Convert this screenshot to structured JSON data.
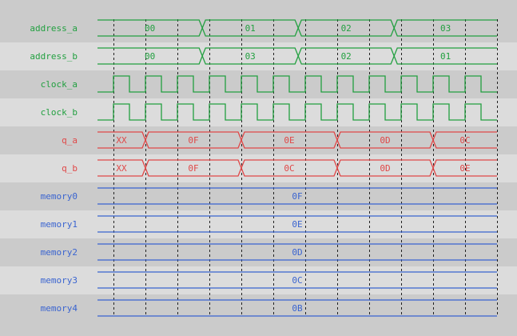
{
  "colors": {
    "bg_dark": "#cbcbcb",
    "bg_light": "#dcdcdc",
    "input": "#22a040",
    "output": "#e04848",
    "memory": "#3a64d0",
    "grid": "#222222"
  },
  "time_axis": {
    "start_cycle": -0.5,
    "end_cycle": 12,
    "grid_every_cycles": 1,
    "grid_first": 0
  },
  "signals": [
    {
      "name": "address_a",
      "kind": "bus",
      "color": "input",
      "segments": [
        {
          "value": "00",
          "end": 2.78
        },
        {
          "value": "01",
          "end": 5.78
        },
        {
          "value": "02",
          "end": 8.78
        },
        {
          "value": "03",
          "end": 12
        }
      ]
    },
    {
      "name": "address_b",
      "kind": "bus",
      "color": "input",
      "segments": [
        {
          "value": "00",
          "end": 2.78
        },
        {
          "value": "03",
          "end": 5.78
        },
        {
          "value": "02",
          "end": 8.78
        },
        {
          "value": "01",
          "end": 12
        }
      ]
    },
    {
      "name": "clock_a",
      "kind": "clock",
      "color": "input",
      "first_rise": 0,
      "period": 1
    },
    {
      "name": "clock_b",
      "kind": "clock",
      "color": "input",
      "first_rise": 0,
      "period": 1
    },
    {
      "name": "q_a",
      "kind": "bus",
      "color": "output",
      "segments": [
        {
          "value": "XX",
          "end": 1
        },
        {
          "value": "0F",
          "end": 4
        },
        {
          "value": "0E",
          "end": 7
        },
        {
          "value": "0D",
          "end": 10
        },
        {
          "value": "0C",
          "end": 12
        }
      ]
    },
    {
      "name": "q_b",
      "kind": "bus",
      "color": "output",
      "segments": [
        {
          "value": "XX",
          "end": 1
        },
        {
          "value": "0F",
          "end": 4
        },
        {
          "value": "0C",
          "end": 7
        },
        {
          "value": "0D",
          "end": 10
        },
        {
          "value": "0E",
          "end": 12
        }
      ]
    },
    {
      "name": "memory0",
      "kind": "const",
      "color": "memory",
      "segments": [
        {
          "value": "0F",
          "end": 12
        }
      ]
    },
    {
      "name": "memory1",
      "kind": "const",
      "color": "memory",
      "segments": [
        {
          "value": "0E",
          "end": 12
        }
      ]
    },
    {
      "name": "memory2",
      "kind": "const",
      "color": "memory",
      "segments": [
        {
          "value": "0D",
          "end": 12
        }
      ]
    },
    {
      "name": "memory3",
      "kind": "const",
      "color": "memory",
      "segments": [
        {
          "value": "0C",
          "end": 12
        }
      ]
    },
    {
      "name": "memory4",
      "kind": "const",
      "color": "memory",
      "segments": [
        {
          "value": "0B",
          "end": 12
        }
      ]
    }
  ]
}
